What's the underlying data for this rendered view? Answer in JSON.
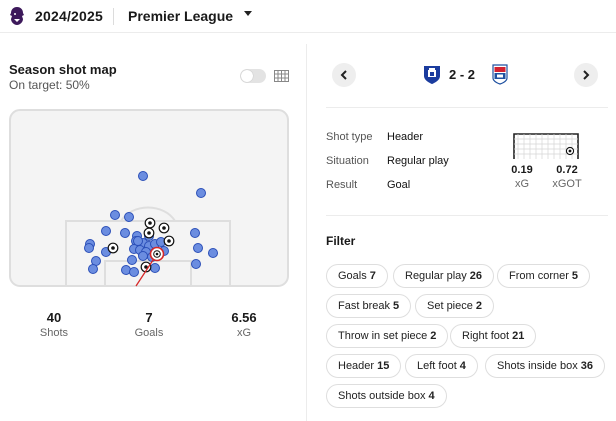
{
  "header": {
    "season": "2024/2025",
    "league": "Premier League",
    "logo_icon": "premier-league-lion-icon",
    "caret_icon": "caret-down-icon"
  },
  "shotmap": {
    "title": "Season shot map",
    "subtitle": "On target: 50%",
    "toggle_on": false,
    "stats": [
      {
        "value": "40",
        "label": "Shots"
      },
      {
        "value": "7",
        "label": "Goals"
      },
      {
        "value": "6.56",
        "label": "xG"
      }
    ]
  },
  "match": {
    "prev_icon": "chevron-left-icon",
    "next_icon": "chevron-right-icon",
    "home_badge": "everton-crest-icon",
    "away_badge": "ipswich-crest-icon",
    "score": "2 - 2"
  },
  "shot_detail": {
    "rows": [
      {
        "key": "Shot type",
        "value": "Header"
      },
      {
        "key": "Situation",
        "value": "Regular play"
      },
      {
        "key": "Result",
        "value": "Goal"
      }
    ],
    "xg": {
      "value": "0.19",
      "label": "xG"
    },
    "xgot": {
      "value": "0.72",
      "label": "xGOT"
    }
  },
  "filter": {
    "title": "Filter",
    "chips": [
      {
        "label": "Goals",
        "count": "7"
      },
      {
        "label": "Regular play",
        "count": "26"
      },
      {
        "label": "From corner",
        "count": "5"
      },
      {
        "label": "Fast break",
        "count": "5"
      },
      {
        "label": "Set piece",
        "count": "2"
      },
      {
        "label": "Throw in set piece",
        "count": "2"
      },
      {
        "label": "Right foot",
        "count": "21"
      },
      {
        "label": "Header",
        "count": "15"
      },
      {
        "label": "Left foot",
        "count": "4"
      },
      {
        "label": "Shots inside box",
        "count": "36"
      },
      {
        "label": "Shots outside box",
        "count": "4"
      }
    ]
  },
  "colors": {
    "shot_fill": "#6b8de0",
    "shot_stroke": "#2b4fb8",
    "selected": "#d62828",
    "pitch_line": "#dedede"
  }
}
